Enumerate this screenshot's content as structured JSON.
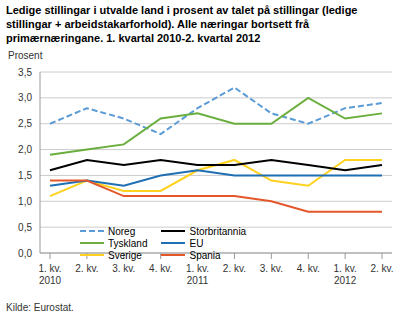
{
  "chart_data": {
    "type": "line",
    "title": "Ledige stillingar i utvalde land i prosent av talet på stillingar (ledige stillingar + arbeidstakarforhold). Alle næringar bortsett frå primærnæringane. 1. kvartal 2010-2. kvartal 2012",
    "y_label": "Prosent",
    "source": "Kilde: Eurostat.",
    "categories": [
      "1. kv. 2010",
      "2. kv.",
      "3. kv.",
      "4. kv.",
      "1. kv. 2011",
      "2. kv.",
      "3. kv.",
      "4. kv.",
      "1. kv. 2012",
      "2. kv."
    ],
    "series": [
      {
        "name": "Noreg",
        "color": "#5b9bd5",
        "line_style": "dashed",
        "values": [
          2.5,
          2.8,
          2.6,
          2.3,
          2.8,
          3.2,
          2.7,
          2.5,
          2.8,
          2.9
        ]
      },
      {
        "name": "Tyskland",
        "color": "#6aaf3d",
        "line_style": "solid",
        "values": [
          1.9,
          2.0,
          2.1,
          2.6,
          2.7,
          2.5,
          2.5,
          3.0,
          2.6,
          2.7
        ]
      },
      {
        "name": "Sverige",
        "color": "#ffd21f",
        "line_style": "solid",
        "values": [
          1.1,
          1.4,
          1.2,
          1.2,
          1.6,
          1.8,
          1.4,
          1.3,
          1.8,
          1.8
        ]
      },
      {
        "name": "Storbritannia",
        "color": "#000000",
        "line_style": "solid",
        "values": [
          1.6,
          1.8,
          1.7,
          1.8,
          1.7,
          1.7,
          1.8,
          1.7,
          1.6,
          1.7
        ]
      },
      {
        "name": "EU",
        "color": "#1f6fb5",
        "line_style": "solid",
        "values": [
          1.3,
          1.4,
          1.3,
          1.5,
          1.6,
          1.5,
          1.5,
          1.5,
          1.5,
          1.5
        ]
      },
      {
        "name": "Spania",
        "color": "#e3572b",
        "line_style": "solid",
        "values": [
          1.4,
          1.4,
          1.1,
          1.1,
          1.1,
          1.1,
          1.0,
          0.8,
          0.8,
          0.8
        ]
      }
    ],
    "ylim": [
      0,
      3.5
    ],
    "yticks": [
      {
        "value": 0,
        "label": "0,0"
      },
      {
        "value": 0.5,
        "label": "0,5"
      },
      {
        "value": 1,
        "label": "1,0"
      },
      {
        "value": 1.5,
        "label": "1,5"
      },
      {
        "value": 2,
        "label": "2,0"
      },
      {
        "value": 2.5,
        "label": "2,5"
      },
      {
        "value": 3,
        "label": "3,0"
      },
      {
        "value": 3.5,
        "label": "3,5"
      }
    ],
    "grid": true,
    "legend": "bottom"
  }
}
